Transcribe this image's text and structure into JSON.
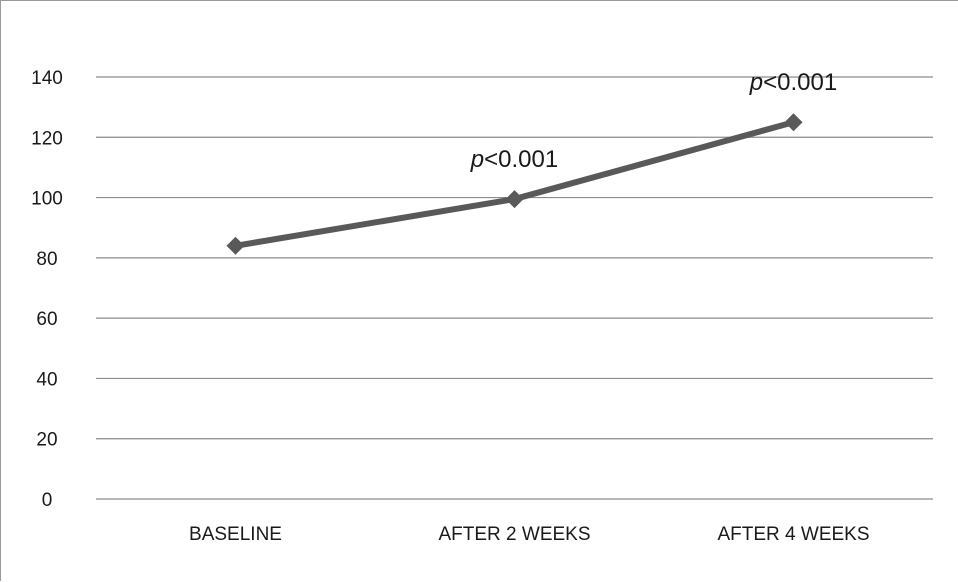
{
  "chart_data": {
    "type": "line",
    "title": "",
    "xlabel": "",
    "ylabel": "",
    "categories": [
      "BASELINE",
      "AFTER 2 WEEKS",
      "AFTER 4 WEEKS"
    ],
    "series": [
      {
        "values": [
          84,
          99.5,
          125
        ]
      }
    ],
    "ylim": [
      0,
      140
    ],
    "yticks": [
      0,
      20,
      40,
      60,
      80,
      100,
      120,
      140
    ],
    "grid": true,
    "legend": "none",
    "annotations": [
      {
        "category": "AFTER 2 WEEKS",
        "p_symbol": "p",
        "text": "<0.001"
      },
      {
        "category": "AFTER 4 WEEKS",
        "p_symbol": "p",
        "text": "<0.001"
      }
    ],
    "colors": {
      "line": "#595959",
      "marker": "#595959",
      "gridline": "#8c8c8c",
      "text": "#1a1a1a"
    }
  }
}
